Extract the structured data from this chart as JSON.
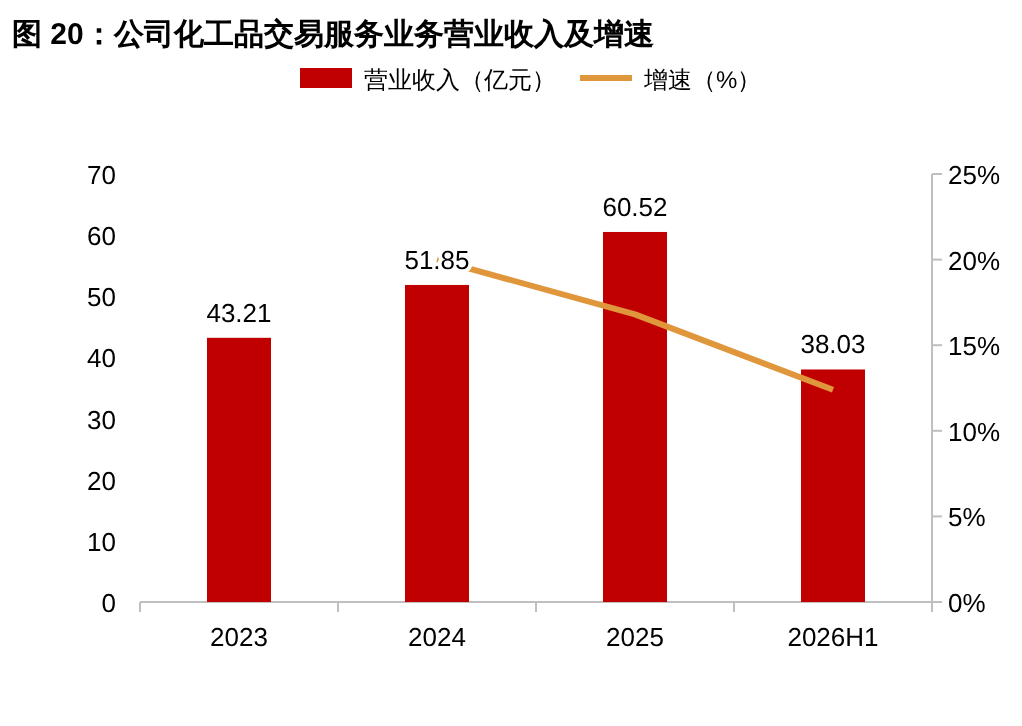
{
  "chart_data": {
    "type": "bar",
    "title": "图 20：公司化工品交易服务业务营业收入及增速",
    "categories": [
      "2023",
      "2024",
      "2025",
      "2026H1"
    ],
    "series": [
      {
        "name": "营业收入（亿元）",
        "color": "#c00000",
        "values": [
          43.21,
          51.85,
          60.52,
          38.03
        ],
        "value_labels": [
          "43.21",
          "51.85",
          "60.52",
          "38.03"
        ]
      },
      {
        "name": "增速（%）",
        "type": "line",
        "axis": "y2",
        "color": "#e0963a",
        "values": [
          null,
          20.0,
          16.8,
          12.4
        ]
      }
    ],
    "ylim": [
      0,
      70
    ],
    "yticks": [
      0,
      10,
      20,
      30,
      40,
      50,
      60,
      70
    ],
    "y2lim": [
      0,
      25
    ],
    "y2ticks": [
      {
        "value": 0,
        "label": "0%"
      },
      {
        "value": 5,
        "label": "5%"
      },
      {
        "value": 10,
        "label": "10%"
      },
      {
        "value": 15,
        "label": "15%"
      },
      {
        "value": 20,
        "label": "20%"
      },
      {
        "value": 25,
        "label": "25%"
      }
    ],
    "legend": "top"
  }
}
